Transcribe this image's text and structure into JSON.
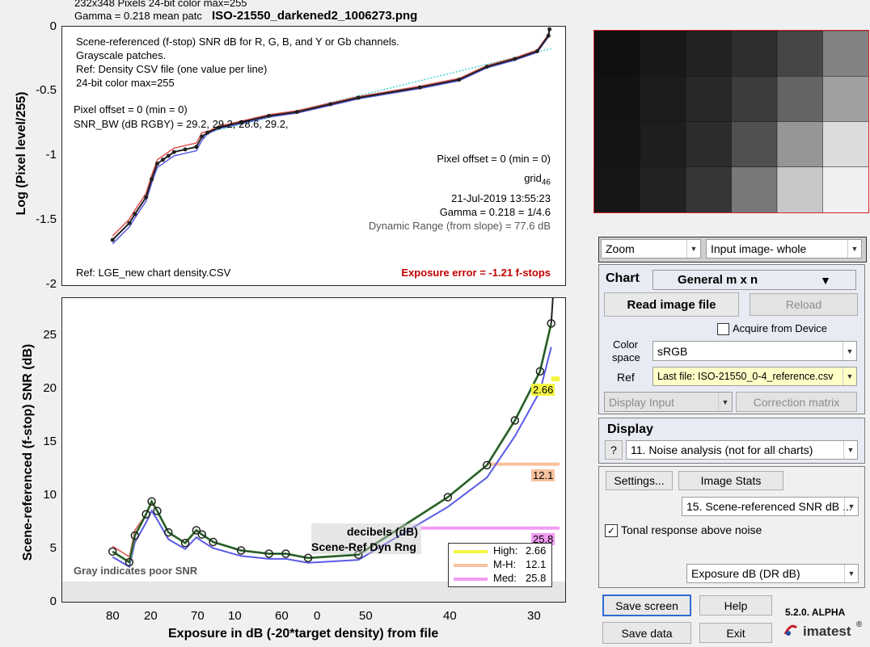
{
  "top_plot": {
    "header_line1": "232x348 Pixels   24-bit color   max=255",
    "header_line2": "Gamma = 0.218   mean patc",
    "file_title": "ISO-21550_darkened2_1006273.png",
    "ylabel": "Log (Pixel level/255)",
    "yticks": [
      "0",
      "-0.5",
      "-1",
      "-1.5",
      "-2"
    ],
    "info_lines": [
      "Scene-referenced (f-stop) SNR dB for R, G, B, and Y or Gb channels.",
      "Grayscale patches.",
      "Ref: Density CSV file (one value per line)",
      "24-bit color  max=255"
    ],
    "pixel_offset_left": "Pixel offset = 0  (min = 0)",
    "snr_bw": "SNR_BW (dB RGBY) = 29.2, 29.2, 28.6, 29.2,",
    "pixel_offset_right": "Pixel offset = 0  (min = 0)",
    "grid_label": "grid",
    "grid_sub": "46",
    "date": "21-Jul-2019 13:55:23",
    "gamma": "Gamma = 0.218 = 1/4.6",
    "dynamic_range": "Dynamic Range (from slope) = 77.6 dB",
    "ref_file": "Ref: LGE_new chart density.CSV",
    "exposure_error": "Exposure error = -1.21 f-stops"
  },
  "bottom_plot": {
    "ylabel": "Scene-referenced (f-stop) SNR (dB)",
    "xlabel": "Exposure in dB (-20*target density)   from file",
    "yticks": [
      "25",
      "20",
      "15",
      "10",
      "5",
      "0"
    ],
    "xticks": [
      "80",
      "70",
      "60",
      "50",
      "40",
      "30",
      "20",
      "10",
      "0"
    ],
    "gray_note": "Gray indicates poor SNR",
    "decibels": "decibels (dB)",
    "dyn_rng": "Scene-Ref Dyn Rng",
    "label_high": "2.66",
    "label_mh": "12.1",
    "label_med": "25.8",
    "legend": [
      {
        "name": "High:",
        "value": "2.66",
        "color": "#f5f542"
      },
      {
        "name": "M-H:",
        "value": "12.1",
        "color": "#f7c29e"
      },
      {
        "name": "Med:",
        "value": "25.8",
        "color": "#f29cf2"
      }
    ]
  },
  "chart_data": [
    {
      "type": "line",
      "title": "ISO-21550_darkened2_1006273.png",
      "xlabel": "",
      "ylabel": "Log (Pixel level/255)",
      "ylim": [
        -2,
        0
      ],
      "series": [
        {
          "name": "Y",
          "x": [
            81,
            78,
            77,
            75,
            74,
            73,
            72,
            71,
            70,
            68,
            66,
            65,
            64,
            62,
            58,
            53,
            48,
            42,
            37,
            26,
            19,
            14,
            9,
            5,
            3,
            2.8
          ],
          "y": [
            -1.65,
            -1.52,
            -1.45,
            -1.32,
            -1.18,
            -1.06,
            -1.03,
            -1.0,
            -0.97,
            -0.95,
            -0.93,
            -0.85,
            -0.82,
            -0.78,
            -0.74,
            -0.69,
            -0.66,
            -0.6,
            -0.55,
            -0.47,
            -0.41,
            -0.31,
            -0.25,
            -0.19,
            -0.07,
            -0.02
          ]
        }
      ]
    },
    {
      "type": "line",
      "title": "",
      "xlabel": "Exposure in dB (-20*target density)   from file",
      "ylabel": "Scene-referenced (f-stop) SNR (dB)",
      "xlim": [
        90,
        0
      ],
      "ylim": [
        0,
        28
      ],
      "series": [
        {
          "name": "Y",
          "x": [
            81,
            78,
            77,
            75,
            74,
            73,
            71,
            68,
            66,
            65,
            63,
            58,
            53,
            50,
            46,
            37,
            21,
            14,
            9,
            4.5,
            2.5
          ],
          "y": [
            3.8,
            2.8,
            5.3,
            7.3,
            8.5,
            7.6,
            5.6,
            4.6,
            5.8,
            5.4,
            4.7,
            3.9,
            3.6,
            3.6,
            3.2,
            3.5,
            8.9,
            11.9,
            16.1,
            20.7,
            25.2
          ]
        }
      ]
    }
  ],
  "right": {
    "zoom": "Zoom",
    "input_image": "Input image- whole",
    "chart_title": "Chart",
    "chart_select": "General m x n",
    "read_image": "Read image file",
    "reload": "Reload",
    "acquire": "Acquire from Device",
    "color_space_label1": "Color",
    "color_space_label2": "space",
    "color_space": "sRGB",
    "ref_label": "Ref",
    "ref_value": "Last file: ISO-21550_0-4_reference.csv",
    "display_input": "Display Input",
    "correction_matrix": "Correction matrix",
    "display_title": "Display",
    "help_q": "?",
    "display_select": "11. Noise analysis (not for all charts)",
    "settings": "Settings...",
    "image_stats": "Image Stats",
    "snr_select": "15. Scene-referenced SNR dB ...",
    "tonal": "Tonal response above noise",
    "exposure_select": "Exposure dB (DR dB)",
    "save_screen": "Save screen",
    "help": "Help",
    "save_data": "Save data",
    "exit": "Exit",
    "version": "5.2.0. ALPHA",
    "logo": "imatest"
  }
}
